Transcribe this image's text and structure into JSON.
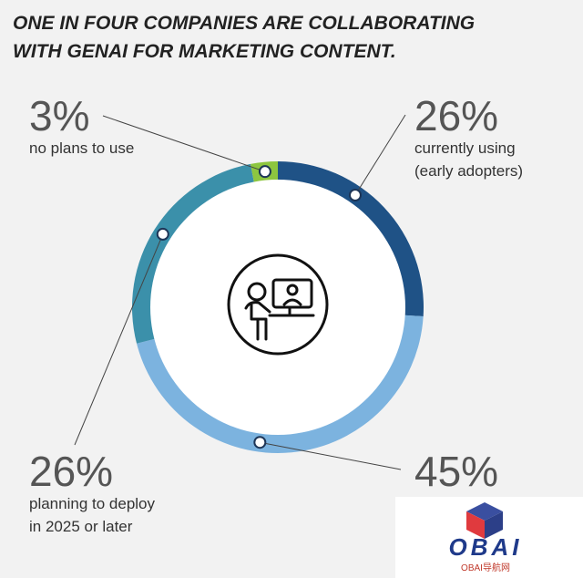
{
  "chart_data": {
    "type": "donut",
    "title": [
      "ONE IN FOUR COMPANIES ARE COLLABORATING",
      "WITH GENAI FOR MARKETING CONTENT."
    ],
    "categories": [
      [
        "currently using",
        "(early adopters)"
      ],
      null,
      [
        "planning to deploy",
        "in 2025 or later"
      ],
      [
        "no plans to use"
      ]
    ],
    "values": [
      26,
      45,
      26,
      3
    ],
    "value_labels": [
      "26%",
      "45%",
      "26%",
      "3%"
    ],
    "colors": [
      "#1f5286",
      "#7cb3df",
      "#3b90aa",
      "#8dc63f"
    ]
  },
  "watermark": {
    "title": "OBAI",
    "subtitle": "OBAI导航网"
  }
}
